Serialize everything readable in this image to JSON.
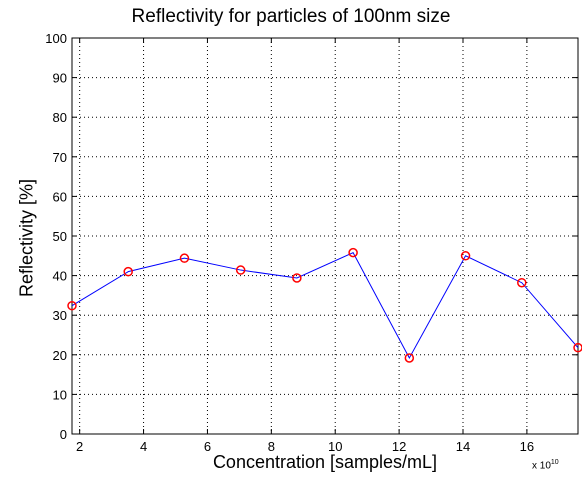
{
  "chart_data": {
    "type": "line",
    "title": "Reflectivity for particles of 100nm size",
    "xlabel": "Concentration [samples/mL]",
    "ylabel": "Reflectivity [%]",
    "x_multiplier_base": "x 10",
    "x_multiplier_exp": "10",
    "xlim": [
      1.76,
      17.6
    ],
    "ylim": [
      0,
      100
    ],
    "xticks": [
      2,
      4,
      6,
      8,
      10,
      12,
      14,
      16
    ],
    "yticks": [
      0,
      10,
      20,
      30,
      40,
      50,
      60,
      70,
      80,
      90,
      100
    ],
    "grid": true,
    "series": [
      {
        "x": [
          1.76,
          3.52,
          5.28,
          7.04,
          8.8,
          10.56,
          12.32,
          14.08,
          15.84,
          17.6
        ],
        "y": [
          32.4,
          41.0,
          44.4,
          41.4,
          39.4,
          45.8,
          19.2,
          45.0,
          38.2,
          21.8
        ],
        "line_color": "#0000ff",
        "marker_color": "#ff0000",
        "marker": "circle"
      }
    ]
  }
}
